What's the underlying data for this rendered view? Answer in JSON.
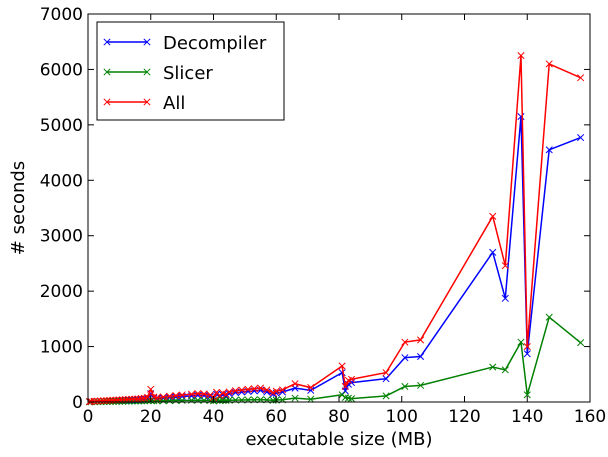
{
  "chart_data": {
    "type": "line",
    "title": "",
    "xlabel": "executable size (MB)",
    "ylabel": "# seconds",
    "xlim": [
      0,
      160
    ],
    "ylim": [
      0,
      7000
    ],
    "xticks": [
      0,
      20,
      40,
      60,
      80,
      100,
      120,
      140,
      160
    ],
    "yticks": [
      0,
      1000,
      2000,
      3000,
      4000,
      5000,
      6000,
      7000
    ],
    "grid": false,
    "legend_position": "top-left",
    "marker": "x",
    "series": [
      {
        "name": "Decompiler",
        "color": "#0000ff",
        "points": [
          [
            0.5,
            5
          ],
          [
            1,
            8
          ],
          [
            2,
            10
          ],
          [
            3,
            12
          ],
          [
            4,
            14
          ],
          [
            5,
            16
          ],
          [
            6,
            18
          ],
          [
            7,
            20
          ],
          [
            8,
            22
          ],
          [
            9,
            24
          ],
          [
            10,
            26
          ],
          [
            11,
            28
          ],
          [
            12,
            30
          ],
          [
            13,
            32
          ],
          [
            14,
            34
          ],
          [
            15,
            36
          ],
          [
            16,
            38
          ],
          [
            17,
            45
          ],
          [
            18,
            50
          ],
          [
            19,
            60
          ],
          [
            20,
            150
          ],
          [
            21,
            70
          ],
          [
            22,
            60
          ],
          [
            24,
            70
          ],
          [
            26,
            80
          ],
          [
            28,
            90
          ],
          [
            30,
            100
          ],
          [
            33,
            110
          ],
          [
            35,
            120
          ],
          [
            37,
            115
          ],
          [
            39,
            100
          ],
          [
            40,
            60
          ],
          [
            41,
            140
          ],
          [
            42,
            90
          ],
          [
            43,
            130
          ],
          [
            44,
            110
          ],
          [
            45,
            150
          ],
          [
            47,
            170
          ],
          [
            49,
            180
          ],
          [
            51,
            190
          ],
          [
            53,
            200
          ],
          [
            55,
            210
          ],
          [
            57,
            180
          ],
          [
            59,
            140
          ],
          [
            60,
            160
          ],
          [
            62,
            180
          ],
          [
            66,
            250
          ],
          [
            71,
            210
          ],
          [
            81,
            530
          ],
          [
            82,
            200
          ],
          [
            83,
            320
          ],
          [
            84,
            350
          ],
          [
            95,
            420
          ],
          [
            101,
            800
          ],
          [
            106,
            820
          ],
          [
            129,
            2700
          ],
          [
            133,
            1870
          ],
          [
            138,
            5150
          ],
          [
            140,
            870
          ],
          [
            147,
            4550
          ],
          [
            157,
            4770
          ]
        ]
      },
      {
        "name": "Slicer",
        "color": "#008000",
        "points": [
          [
            0.5,
            2
          ],
          [
            1,
            3
          ],
          [
            2,
            4
          ],
          [
            3,
            5
          ],
          [
            4,
            6
          ],
          [
            5,
            7
          ],
          [
            6,
            8
          ],
          [
            7,
            9
          ],
          [
            8,
            10
          ],
          [
            9,
            11
          ],
          [
            10,
            12
          ],
          [
            11,
            13
          ],
          [
            12,
            14
          ],
          [
            13,
            15
          ],
          [
            14,
            16
          ],
          [
            15,
            17
          ],
          [
            16,
            18
          ],
          [
            17,
            19
          ],
          [
            18,
            20
          ],
          [
            19,
            25
          ],
          [
            20,
            30
          ],
          [
            21,
            22
          ],
          [
            22,
            20
          ],
          [
            24,
            22
          ],
          [
            26,
            24
          ],
          [
            28,
            26
          ],
          [
            30,
            28
          ],
          [
            33,
            30
          ],
          [
            35,
            32
          ],
          [
            37,
            30
          ],
          [
            39,
            28
          ],
          [
            40,
            20
          ],
          [
            41,
            35
          ],
          [
            42,
            25
          ],
          [
            43,
            30
          ],
          [
            44,
            28
          ],
          [
            45,
            32
          ],
          [
            47,
            34
          ],
          [
            49,
            36
          ],
          [
            51,
            38
          ],
          [
            53,
            40
          ],
          [
            55,
            42
          ],
          [
            57,
            38
          ],
          [
            59,
            30
          ],
          [
            60,
            35
          ],
          [
            62,
            40
          ],
          [
            66,
            70
          ],
          [
            71,
            50
          ],
          [
            81,
            130
          ],
          [
            82,
            80
          ],
          [
            83,
            70
          ],
          [
            84,
            60
          ],
          [
            95,
            110
          ],
          [
            101,
            280
          ],
          [
            106,
            300
          ],
          [
            129,
            630
          ],
          [
            133,
            580
          ],
          [
            138,
            1080
          ],
          [
            140,
            130
          ],
          [
            147,
            1530
          ],
          [
            157,
            1070
          ]
        ]
      },
      {
        "name": "All",
        "color": "#ff0000",
        "points": [
          [
            0.5,
            7
          ],
          [
            1,
            11
          ],
          [
            2,
            14
          ],
          [
            3,
            17
          ],
          [
            4,
            20
          ],
          [
            5,
            23
          ],
          [
            6,
            26
          ],
          [
            7,
            29
          ],
          [
            8,
            32
          ],
          [
            9,
            35
          ],
          [
            10,
            38
          ],
          [
            11,
            41
          ],
          [
            12,
            44
          ],
          [
            13,
            47
          ],
          [
            14,
            50
          ],
          [
            15,
            53
          ],
          [
            16,
            56
          ],
          [
            17,
            64
          ],
          [
            18,
            70
          ],
          [
            19,
            85
          ],
          [
            20,
            230
          ],
          [
            21,
            92
          ],
          [
            22,
            80
          ],
          [
            24,
            92
          ],
          [
            26,
            104
          ],
          [
            28,
            116
          ],
          [
            30,
            128
          ],
          [
            33,
            140
          ],
          [
            35,
            152
          ],
          [
            37,
            145
          ],
          [
            39,
            128
          ],
          [
            40,
            80
          ],
          [
            41,
            175
          ],
          [
            42,
            115
          ],
          [
            43,
            160
          ],
          [
            44,
            138
          ],
          [
            45,
            182
          ],
          [
            47,
            204
          ],
          [
            49,
            216
          ],
          [
            51,
            228
          ],
          [
            53,
            240
          ],
          [
            55,
            252
          ],
          [
            57,
            218
          ],
          [
            59,
            170
          ],
          [
            60,
            195
          ],
          [
            62,
            220
          ],
          [
            66,
            330
          ],
          [
            71,
            260
          ],
          [
            81,
            650
          ],
          [
            82,
            280
          ],
          [
            83,
            390
          ],
          [
            84,
            410
          ],
          [
            95,
            530
          ],
          [
            101,
            1080
          ],
          [
            106,
            1120
          ],
          [
            129,
            3350
          ],
          [
            133,
            2460
          ],
          [
            138,
            6250
          ],
          [
            140,
            1000
          ],
          [
            147,
            6100
          ],
          [
            157,
            5850
          ]
        ]
      }
    ]
  }
}
